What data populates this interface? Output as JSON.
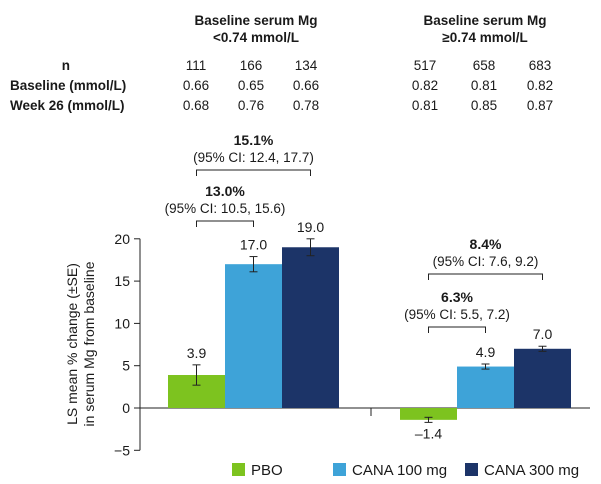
{
  "table": {
    "groups": [
      {
        "title_line1": "Baseline serum Mg",
        "title_line2": "<0.74 mmol/L"
      },
      {
        "title_line1": "Baseline serum Mg",
        "title_line2": "≥0.74 mmol/L"
      }
    ],
    "rows": [
      {
        "label": "n",
        "values": [
          "111",
          "166",
          "134",
          "517",
          "658",
          "683"
        ]
      },
      {
        "label": "Baseline (mmol/L)",
        "values": [
          "0.66",
          "0.65",
          "0.66",
          "0.82",
          "0.81",
          "0.82"
        ]
      },
      {
        "label": "Week 26 (mmol/L)",
        "values": [
          "0.68",
          "0.76",
          "0.78",
          "0.81",
          "0.85",
          "0.87"
        ]
      }
    ]
  },
  "chart_data": {
    "type": "bar",
    "ylabel_line1": "LS mean % change (±SE)",
    "ylabel_line2": "in serum Mg from baseline",
    "ylim": [
      -5,
      20
    ],
    "yticks": [
      "−5",
      "0",
      "5",
      "10",
      "15",
      "20"
    ],
    "ytick_values": [
      -5,
      0,
      5,
      10,
      15,
      20
    ],
    "groups": [
      "Baseline serum Mg <0.74 mmol/L",
      "Baseline serum Mg ≥0.74 mmol/L"
    ],
    "series": [
      {
        "name": "PBO",
        "color": "#7dc31f",
        "values": [
          3.9,
          -1.4
        ],
        "errors": [
          1.2,
          0.3
        ],
        "labels": [
          "3.9",
          "–1.4"
        ]
      },
      {
        "name": "CANA 100 mg",
        "color": "#3ea3d8",
        "values": [
          17.0,
          4.9
        ],
        "errors": [
          0.9,
          0.3
        ],
        "labels": [
          "17.0",
          "4.9"
        ]
      },
      {
        "name": "CANA 300 mg",
        "color": "#1c3468",
        "values": [
          19.0,
          7.0
        ],
        "errors": [
          1.0,
          0.3
        ],
        "labels": [
          "19.0",
          "7.0"
        ]
      }
    ],
    "annotations": [
      {
        "group": 0,
        "from": 0,
        "to": 2,
        "pct": "15.1%",
        "ci": "(95% CI: 12.4, 17.7)"
      },
      {
        "group": 0,
        "from": 0,
        "to": 1,
        "pct": "13.0%",
        "ci": "(95% CI: 10.5, 15.6)"
      },
      {
        "group": 1,
        "from": 0,
        "to": 2,
        "pct": "8.4%",
        "ci": "(95% CI: 7.6, 9.2)"
      },
      {
        "group": 1,
        "from": 0,
        "to": 1,
        "pct": "6.3%",
        "ci": "(95% CI: 5.5, 7.2)"
      }
    ],
    "legend": [
      "PBO",
      "CANA 100 mg",
      "CANA 300 mg"
    ],
    "legend_position": "bottom"
  }
}
